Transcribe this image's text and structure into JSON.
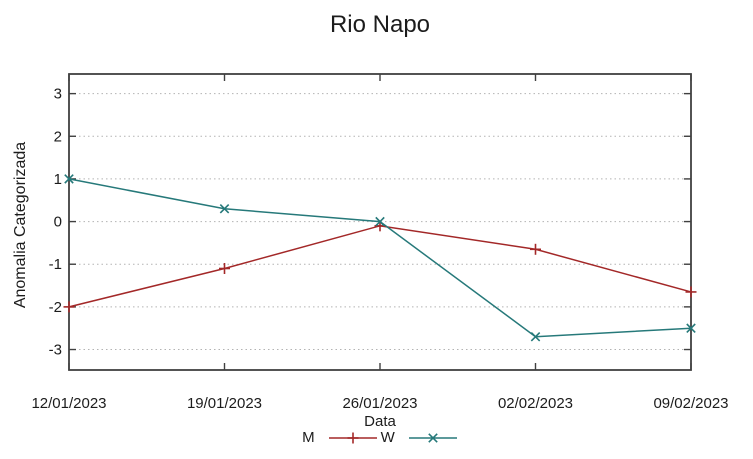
{
  "chart_data": {
    "type": "line",
    "title": "Rio Napo",
    "xlabel": "Data",
    "ylabel": "Anomalia Categorizada",
    "categories": [
      "12/01/2023",
      "19/01/2023",
      "26/01/2023",
      "02/02/2023",
      "09/02/2023"
    ],
    "series": [
      {
        "name": "M",
        "marker": "plus",
        "color": "#a32828",
        "values": [
          -2.0,
          -1.1,
          -0.1,
          -0.65,
          -1.65
        ]
      },
      {
        "name": "W",
        "marker": "cross",
        "color": "#26797a",
        "values": [
          1.0,
          0.3,
          0.0,
          -2.7,
          -2.5
        ]
      }
    ],
    "yticks": [
      3,
      2,
      1,
      0,
      -1,
      -2,
      -3
    ],
    "ylim": [
      -3.48,
      3.46
    ],
    "grid": "horizontal-dotted",
    "legend_position": "bottom-center",
    "colors": {
      "series_m": "#a32828",
      "series_w": "#26797a",
      "grid": "#b3b3b3",
      "border": "#404040",
      "text": "#1c1c1c"
    }
  }
}
